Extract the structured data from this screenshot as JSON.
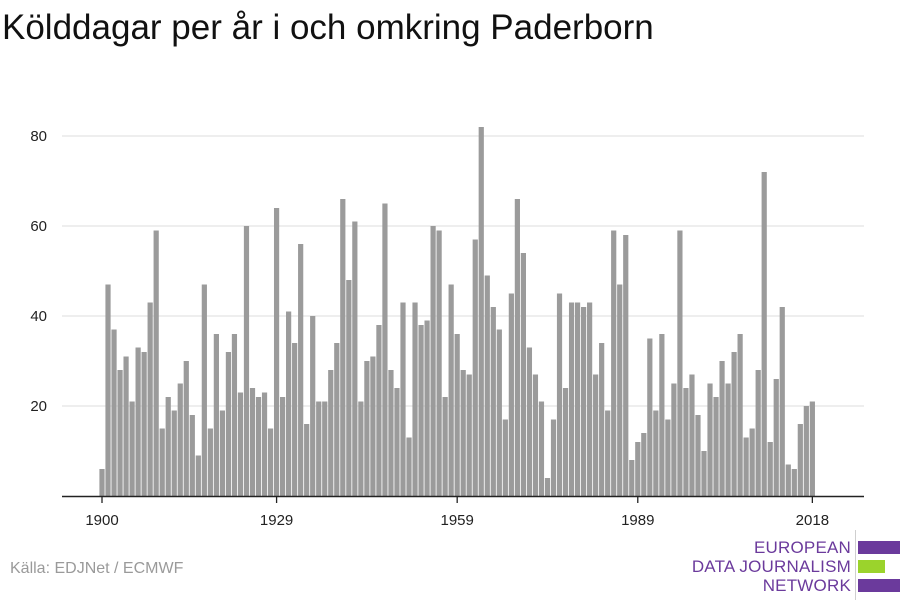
{
  "title": "Kölddagar per år i och omkring Paderborn",
  "source": "Källa: EDJNet / ECMWF",
  "logo": {
    "lines": [
      "EUROPEAN",
      "DATA JOURNALISM",
      "NETWORK"
    ],
    "colors": {
      "purple": "#6b3a9c",
      "green": "#9bd32c"
    }
  },
  "chart_data": {
    "type": "bar",
    "bar_color": "#9b9b9b",
    "grid": true,
    "x_tick_labels": [
      "1900",
      "1929",
      "1959",
      "1989",
      "2018"
    ],
    "x_ticks": [
      1900,
      1929,
      1959,
      1989,
      2018
    ],
    "y_ticks": [
      20,
      40,
      60,
      80
    ],
    "x_range": [
      1900,
      2018
    ],
    "categories": [
      1900,
      1901,
      1902,
      1903,
      1904,
      1905,
      1906,
      1907,
      1908,
      1909,
      1910,
      1911,
      1912,
      1913,
      1914,
      1915,
      1916,
      1917,
      1918,
      1919,
      1920,
      1921,
      1922,
      1923,
      1924,
      1925,
      1926,
      1927,
      1928,
      1929,
      1930,
      1931,
      1932,
      1933,
      1934,
      1935,
      1936,
      1937,
      1938,
      1939,
      1940,
      1941,
      1942,
      1943,
      1944,
      1945,
      1946,
      1947,
      1948,
      1949,
      1950,
      1951,
      1952,
      1953,
      1954,
      1955,
      1956,
      1957,
      1958,
      1959,
      1960,
      1961,
      1962,
      1963,
      1964,
      1965,
      1966,
      1967,
      1968,
      1969,
      1970,
      1971,
      1972,
      1973,
      1974,
      1975,
      1976,
      1977,
      1978,
      1979,
      1980,
      1981,
      1982,
      1983,
      1984,
      1985,
      1986,
      1987,
      1988,
      1989,
      1990,
      1991,
      1992,
      1993,
      1994,
      1995,
      1996,
      1997,
      1998,
      1999,
      2000,
      2001,
      2002,
      2003,
      2004,
      2005,
      2006,
      2007,
      2008,
      2009,
      2010,
      2011,
      2012,
      2013,
      2014,
      2015,
      2016,
      2017,
      2018
    ],
    "values": [
      6,
      47,
      37,
      28,
      31,
      21,
      33,
      32,
      43,
      59,
      15,
      22,
      19,
      25,
      30,
      18,
      9,
      47,
      15,
      36,
      19,
      32,
      36,
      23,
      60,
      24,
      22,
      23,
      15,
      64,
      22,
      41,
      34,
      56,
      16,
      40,
      21,
      21,
      28,
      34,
      66,
      48,
      61,
      21,
      30,
      31,
      38,
      65,
      28,
      24,
      43,
      13,
      43,
      38,
      39,
      60,
      59,
      22,
      47,
      36,
      28,
      27,
      57,
      82,
      49,
      42,
      37,
      17,
      45,
      66,
      54,
      33,
      27,
      21,
      4,
      17,
      45,
      24,
      43,
      43,
      42,
      43,
      27,
      34,
      19,
      59,
      47,
      58,
      8,
      12,
      14,
      35,
      19,
      36,
      17,
      25,
      59,
      24,
      27,
      18,
      10,
      25,
      22,
      30,
      25,
      32,
      36,
      13,
      15,
      28,
      72,
      12,
      26,
      42,
      7,
      6,
      16,
      20,
      21
    ],
    "ylim": [
      4,
      88
    ]
  }
}
